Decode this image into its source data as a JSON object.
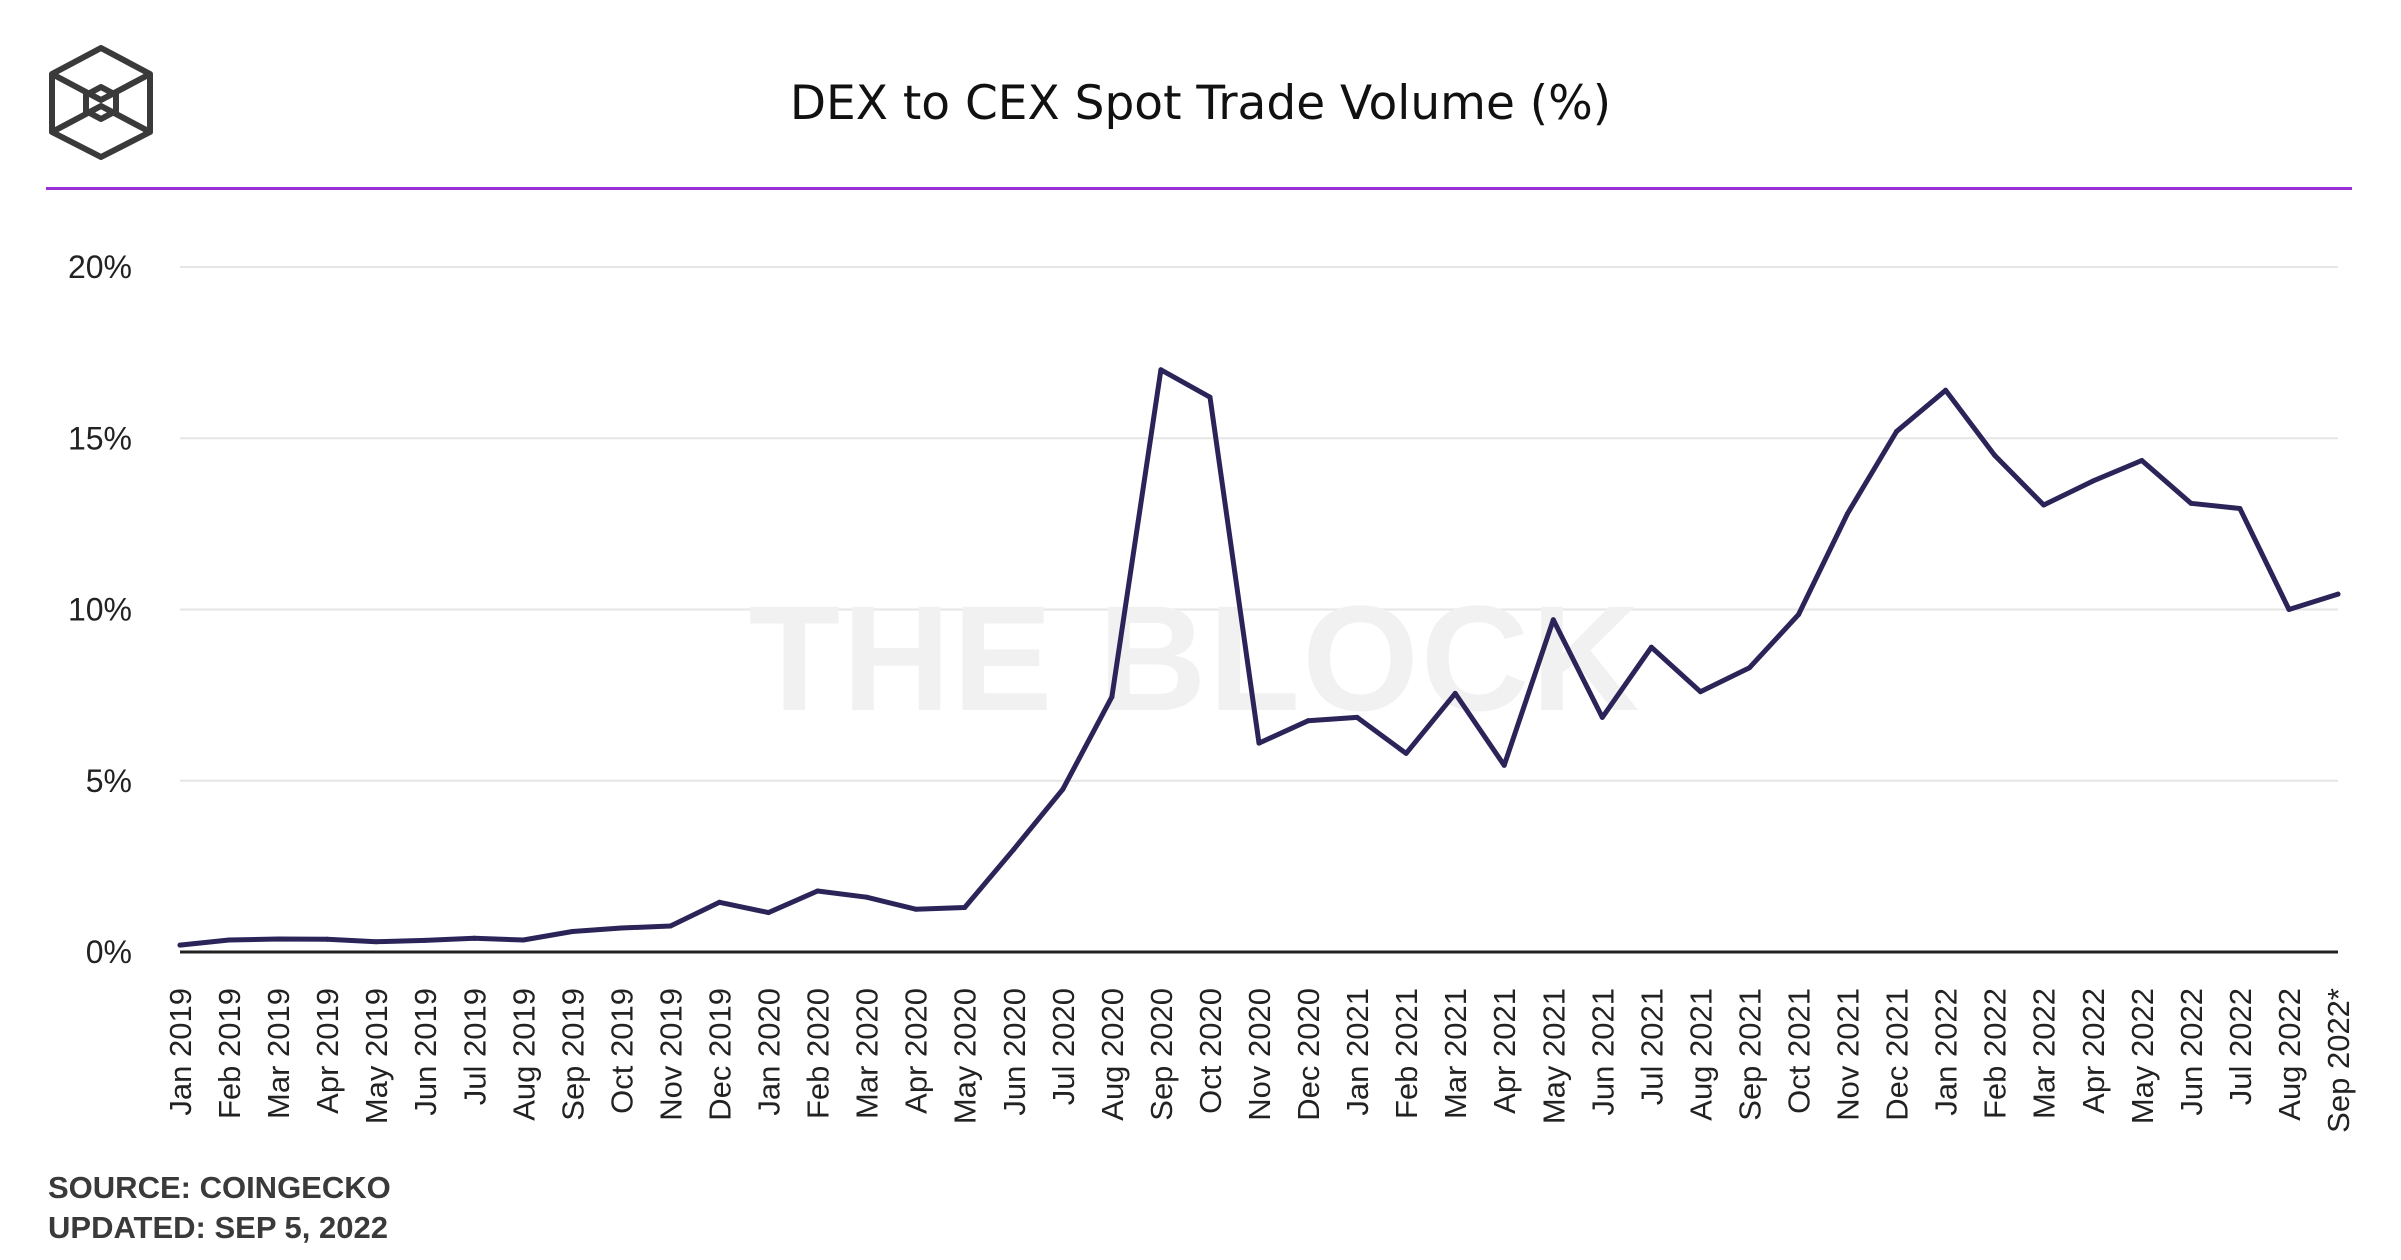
{
  "header": {
    "title": "DEX to CEX Spot Trade Volume (%)"
  },
  "watermark": "THE BLOCK",
  "footer": {
    "source": "SOURCE: COINGECKO",
    "updated": "UPDATED: SEP 5, 2022"
  },
  "colors": {
    "line": "#2b2459",
    "rule": "#9b30d9",
    "grid": "#e6e6e6",
    "axis": "#222222"
  },
  "icons": {
    "logo": "cube-logo-icon"
  },
  "chart_data": {
    "type": "line",
    "title": "DEX to CEX Spot Trade Volume (%)",
    "xlabel": "",
    "ylabel": "",
    "ylim": [
      0,
      20
    ],
    "yticks": [
      0,
      5,
      10,
      15,
      20
    ],
    "ytick_labels": [
      "0%",
      "5%",
      "10%",
      "15%",
      "20%"
    ],
    "grid": true,
    "legend": "none",
    "categories": [
      "Jan 2019",
      "Feb 2019",
      "Mar 2019",
      "Apr 2019",
      "May 2019",
      "Jun 2019",
      "Jul 2019",
      "Aug 2019",
      "Sep 2019",
      "Oct 2019",
      "Nov 2019",
      "Dec 2019",
      "Jan 2020",
      "Feb 2020",
      "Mar 2020",
      "Apr 2020",
      "May 2020",
      "Jun 2020",
      "Jul 2020",
      "Aug 2020",
      "Sep 2020",
      "Oct 2020",
      "Nov 2020",
      "Dec 2020",
      "Jan 2021",
      "Feb 2021",
      "Mar 2021",
      "Apr 2021",
      "May 2021",
      "Jun 2021",
      "Jul 2021",
      "Aug 2021",
      "Sep 2021",
      "Oct 2021",
      "Nov 2021",
      "Dec 2021",
      "Jan 2022",
      "Feb 2022",
      "Mar 2022",
      "Apr 2022",
      "May 2022",
      "Jun 2022",
      "Jul 2022",
      "Aug 2022",
      "Sep 2022*"
    ],
    "series": [
      {
        "values": [
          0.2,
          0.35,
          0.38,
          0.37,
          0.3,
          0.34,
          0.4,
          0.35,
          0.6,
          0.7,
          0.76,
          1.45,
          1.15,
          1.78,
          1.6,
          1.25,
          1.3,
          3.0,
          4.75,
          7.45,
          17.0,
          16.2,
          6.1,
          6.75,
          6.85,
          5.8,
          7.55,
          5.45,
          9.7,
          6.85,
          8.9,
          7.6,
          8.3,
          9.85,
          12.8,
          15.2,
          16.4,
          14.5,
          13.05,
          13.75,
          14.35,
          13.1,
          12.95,
          10.0,
          10.45
        ]
      }
    ]
  }
}
